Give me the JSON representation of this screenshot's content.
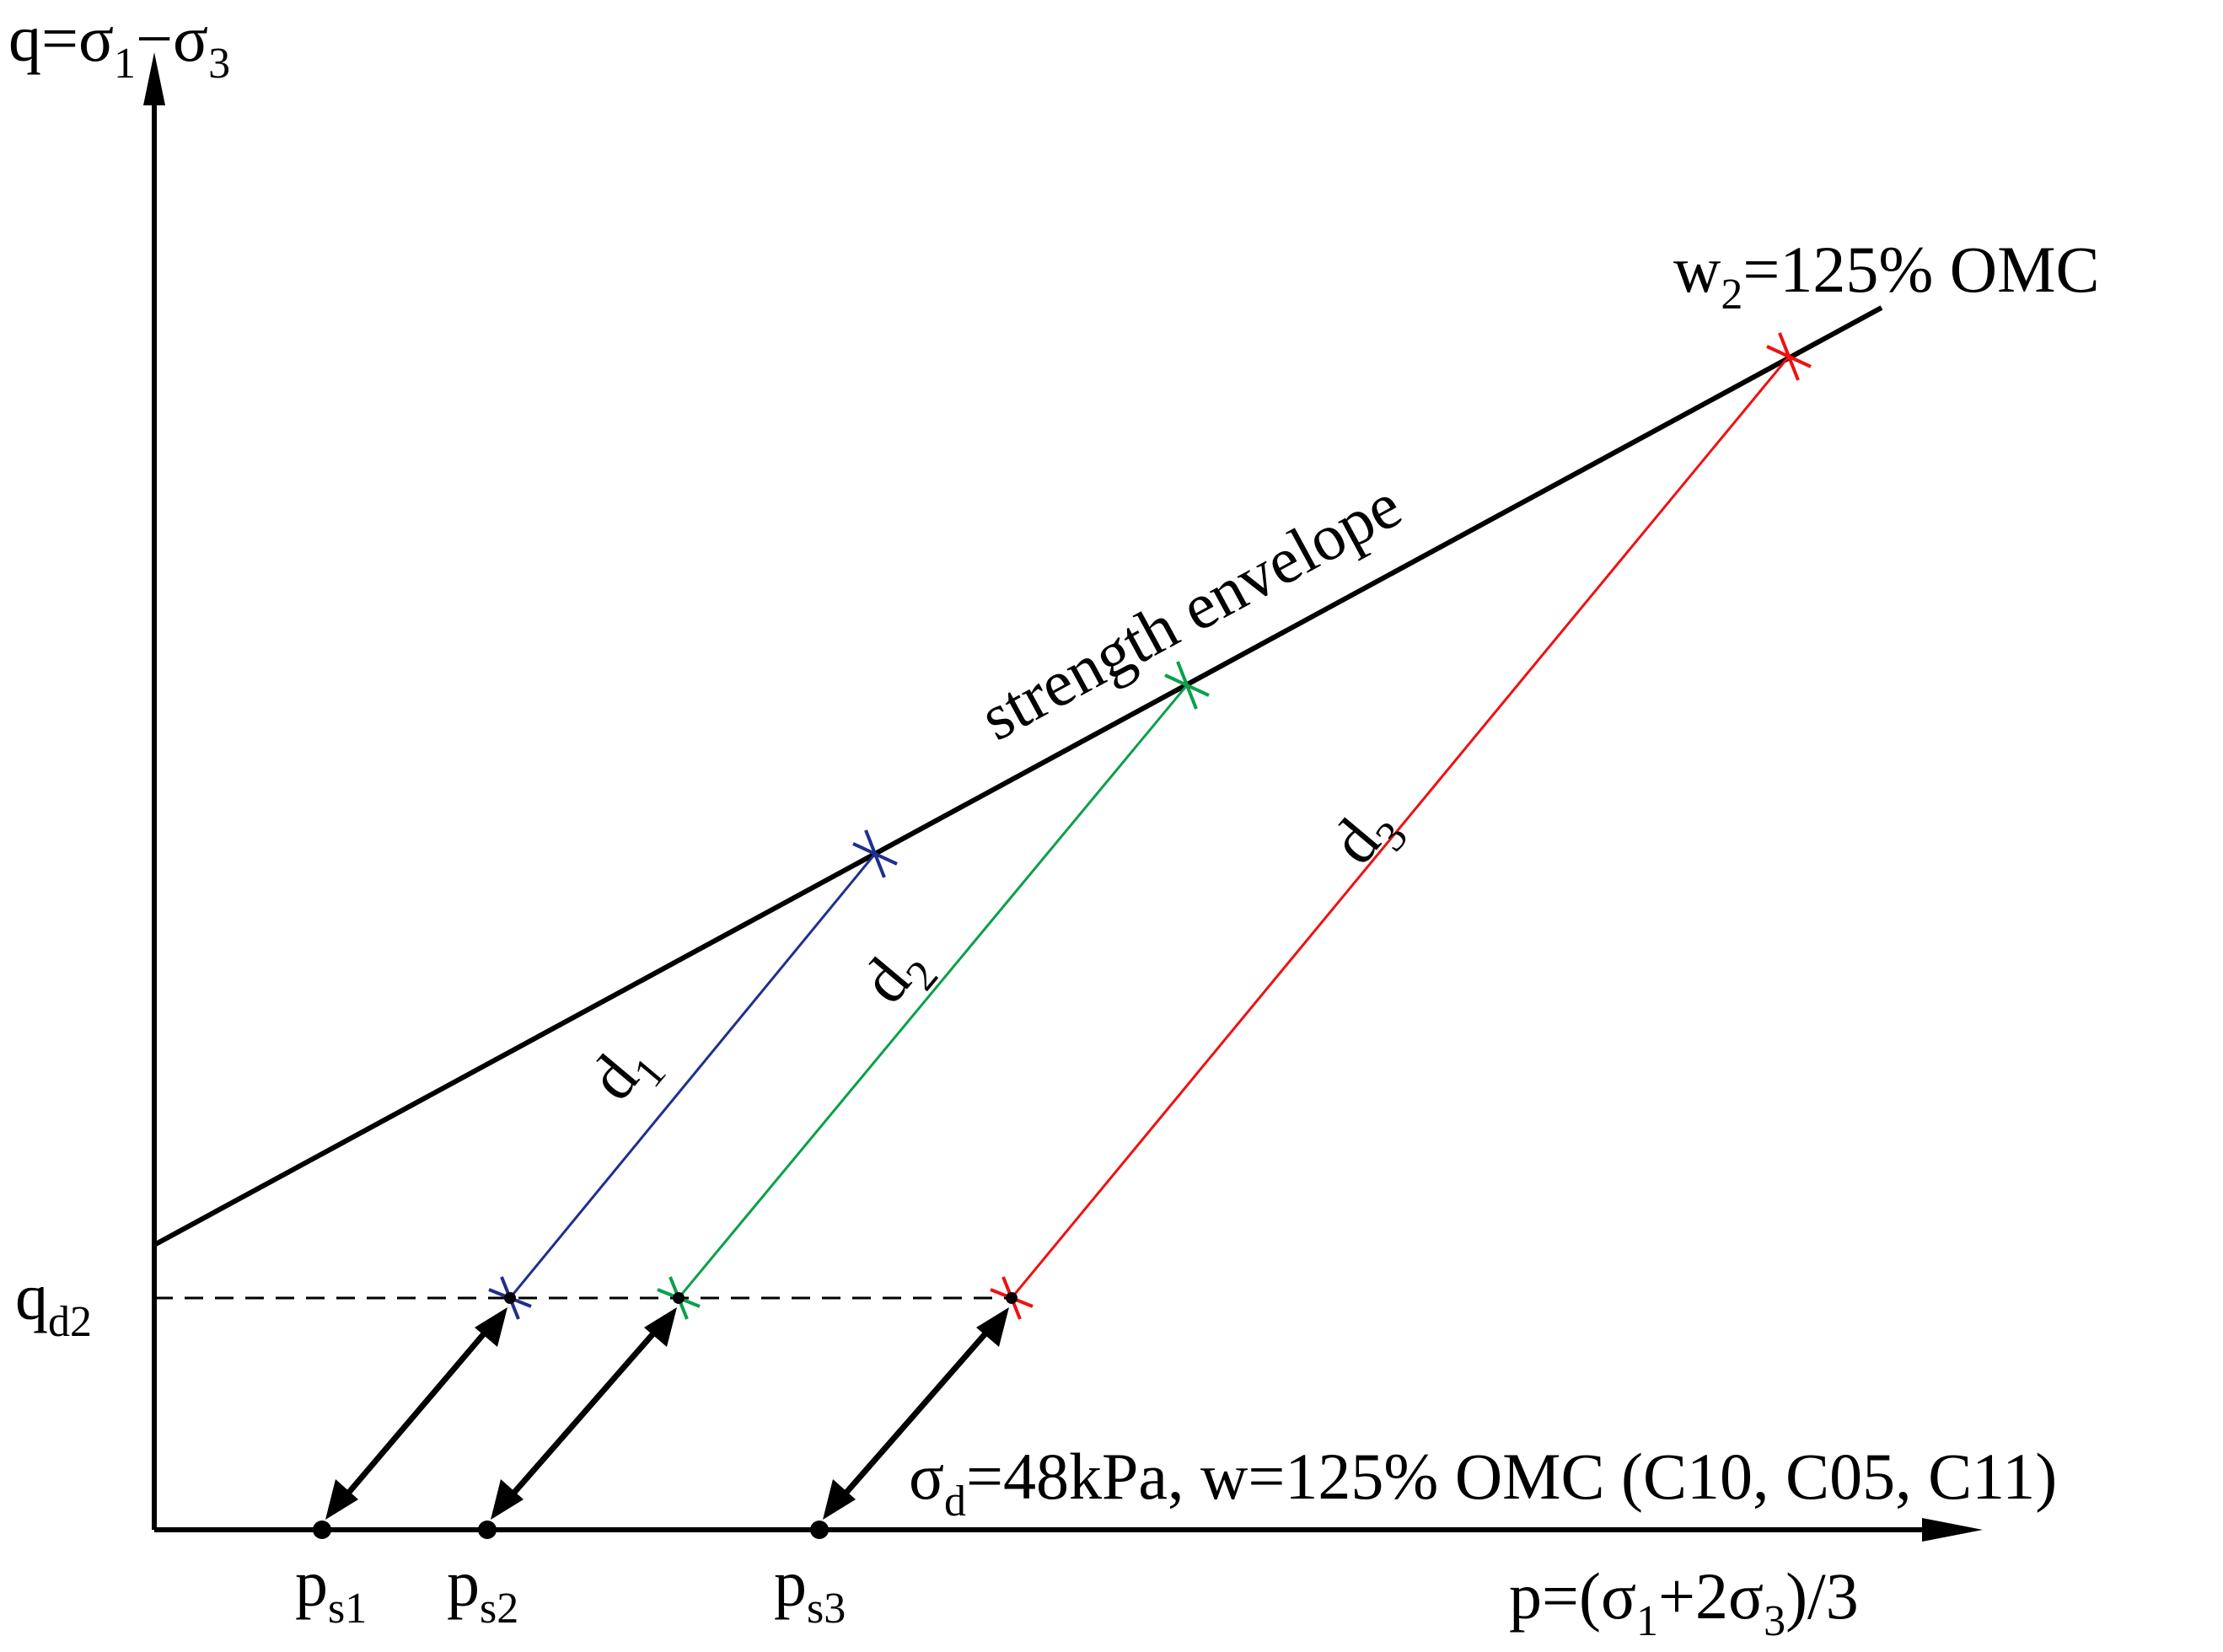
{
  "axes": {
    "y_label": {
      "main": "q=σ",
      "sub1": "1",
      "mid": "−σ",
      "sub2": "3"
    },
    "x_label": {
      "main": "p=(σ",
      "sub1": "1",
      "mid": "+2σ",
      "sub2": "3",
      "tail": ")/3"
    }
  },
  "envelope": {
    "label": "strength envelope",
    "moisture": {
      "prefix": "w",
      "sub": "2",
      "suffix": "=125% OMC"
    }
  },
  "qd": {
    "main": "q",
    "sub": "d2"
  },
  "condition": {
    "main": "σ",
    "sub": "d",
    "text": "=48kPa, w=125% OMC (C10, C05, C11)"
  },
  "paths": [
    {
      "id": "d1",
      "label": "d",
      "sub": "1",
      "color": "#1f2f8f",
      "p_label": "p",
      "p_sub": "s1"
    },
    {
      "id": "d2",
      "label": "d",
      "sub": "2",
      "color": "#0aa04a",
      "p_label": "p",
      "p_sub": "s2"
    },
    {
      "id": "d3",
      "label": "d",
      "sub": "3",
      "color": "#ee1111",
      "p_label": "p",
      "p_sub": "s3"
    }
  ],
  "colors": {
    "axis": "#000000",
    "envelope": "#000000"
  }
}
